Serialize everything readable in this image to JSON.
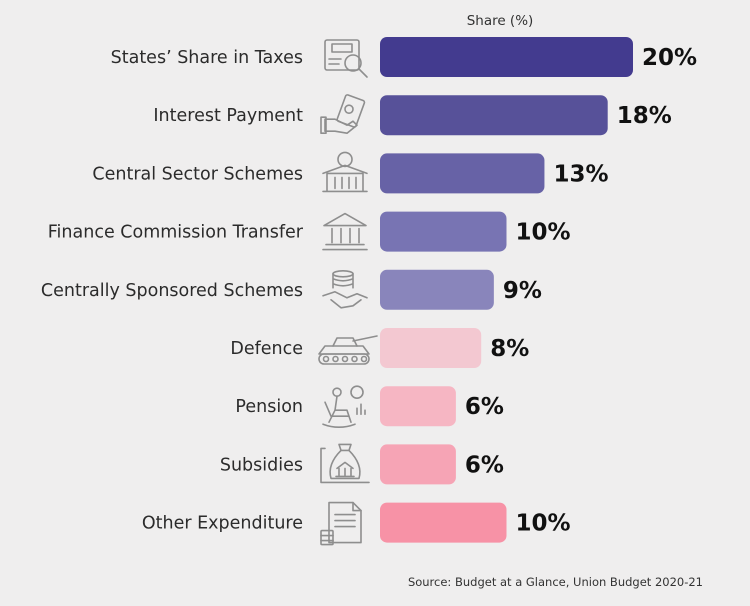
{
  "chart_data": {
    "type": "bar",
    "orientation": "horizontal",
    "value_header": "Share (%)",
    "categories": [
      "States’ Share in Taxes",
      "Interest Payment",
      "Central Sector Schemes",
      "Finance Commission Transfer",
      "Centrally Sponsored Schemes",
      "Defence",
      "Pension",
      "Subsidies",
      "Other Expenditure"
    ],
    "values": [
      20,
      18,
      13,
      10,
      9,
      8,
      6,
      6,
      10
    ],
    "value_labels": [
      "20%",
      "18%",
      "13%",
      "10%",
      "9%",
      "8%",
      "6%",
      "6%",
      "10%"
    ],
    "icons": [
      "tax-icon",
      "money-hand-icon",
      "rupee-building-icon",
      "bank-icon",
      "coins-handshake-icon",
      "tank-icon",
      "pensioner-icon",
      "subsidy-icon",
      "document-icon"
    ],
    "colors": [
      "#433b8f",
      "#575199",
      "#6762a6",
      "#7874b3",
      "#8985bb",
      "#f3c8d1",
      "#f6b6c3",
      "#f6a4b5",
      "#f792a6"
    ],
    "xlim": [
      0,
      20
    ],
    "grid": false,
    "legend": "none"
  },
  "footer": {
    "source": "Source: Budget at a Glance, Union Budget 2020-21"
  }
}
